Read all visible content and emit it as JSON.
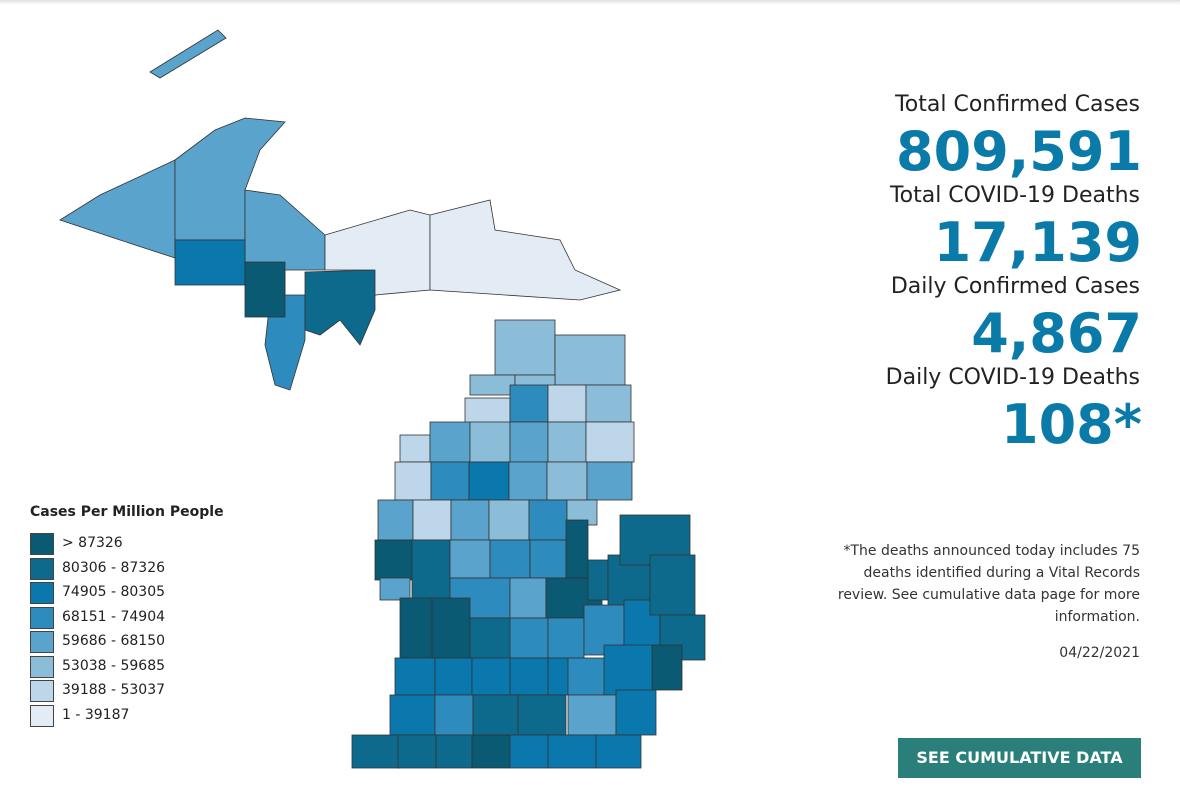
{
  "stats": [
    {
      "label": "Total Confirmed Cases",
      "value": "809,591"
    },
    {
      "label": "Total COVID-19 Deaths",
      "value": "17,139"
    },
    {
      "label": "Daily Confirmed Cases",
      "value": "4,867"
    },
    {
      "label": "Daily COVID-19 Deaths",
      "value": "108*"
    }
  ],
  "footnote": [
    "*The deaths announced today includes 75",
    "deaths identified during a Vital Records",
    "review. See cumulative data page for more",
    "information."
  ],
  "date": "04/22/2021",
  "button": "SEE CUMULATIVE DATA",
  "legend": {
    "title": "Cases Per Million People",
    "items": [
      {
        "label": "> 87326",
        "color": "#0b5a73"
      },
      {
        "label": "80306 - 87326",
        "color": "#0e6a8c"
      },
      {
        "label": "74905 - 80305",
        "color": "#0a78ad"
      },
      {
        "label": "68151 - 74904",
        "color": "#2e8bbd"
      },
      {
        "label": "59686 - 68150",
        "color": "#5aa3cc"
      },
      {
        "label": "53038 - 59685",
        "color": "#8bbdd9"
      },
      {
        "label": "39188 - 53037",
        "color": "#bdd6ea"
      },
      {
        "label": "1 - 39187",
        "color": "#e3ecf5"
      }
    ]
  }
}
